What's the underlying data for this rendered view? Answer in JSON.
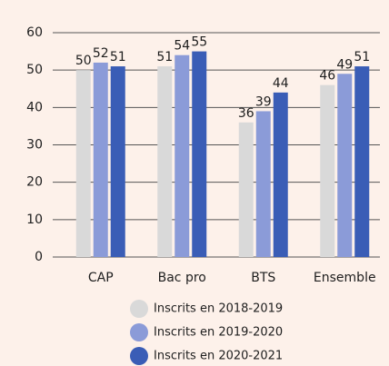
{
  "chart_data": {
    "type": "bar",
    "categories": [
      "CAP",
      "Bac pro",
      "BTS",
      "Ensemble"
    ],
    "series": [
      {
        "name": "Inscrits en 2018-2019",
        "color": "#d9d9d9",
        "values": [
          50,
          51,
          36,
          46
        ]
      },
      {
        "name": "Inscrits en 2019-2020",
        "color": "#8b9bd8",
        "values": [
          52,
          54,
          39,
          49
        ]
      },
      {
        "name": "Inscrits en 2020-2021",
        "color": "#3a5db6",
        "values": [
          51,
          55,
          44,
          51
        ]
      }
    ],
    "ylim": [
      0,
      60
    ],
    "yticks": [
      0,
      10,
      20,
      30,
      40,
      50,
      60
    ],
    "grid": true
  }
}
